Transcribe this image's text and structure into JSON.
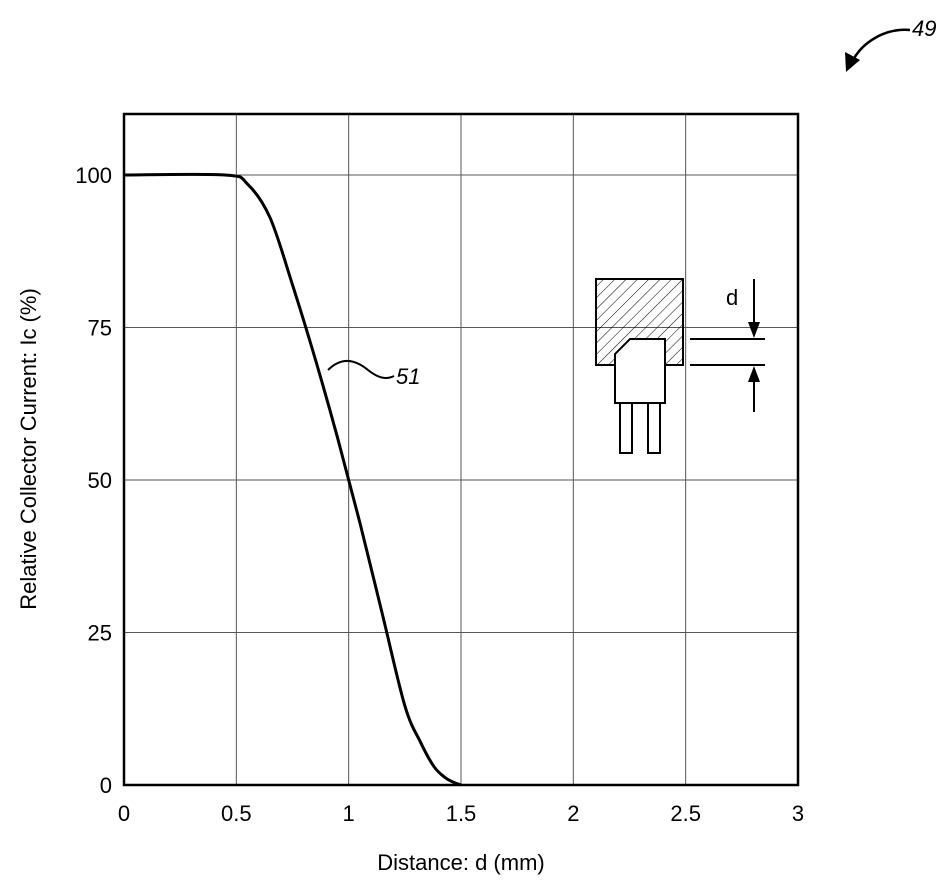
{
  "figure": {
    "number": "49"
  },
  "chart_data": {
    "type": "line",
    "xlabel": "Distance: d (mm)",
    "ylabel": "Relative Collector Current: Ic (%)",
    "xlim": [
      0,
      3
    ],
    "ylim": [
      0,
      110
    ],
    "xticks": [
      "0",
      "0.5",
      "1",
      "1.5",
      "2",
      "2.5",
      "3"
    ],
    "yticks": [
      "0",
      "25",
      "50",
      "75",
      "100"
    ],
    "grid": true,
    "series": [
      {
        "name": "",
        "x": [
          0,
          0.45,
          0.55,
          0.65,
          0.75,
          0.85,
          0.95,
          1.05,
          1.15,
          1.25,
          1.32,
          1.38,
          1.43,
          1.47,
          1.5
        ],
        "y": [
          100,
          100,
          98.5,
          93,
          82,
          70,
          57,
          43,
          28,
          13,
          7,
          3,
          1.2,
          0.4,
          0
        ]
      }
    ],
    "annotations": [
      {
        "text": "51",
        "target": "curve"
      }
    ],
    "inset": {
      "label": "d"
    }
  }
}
